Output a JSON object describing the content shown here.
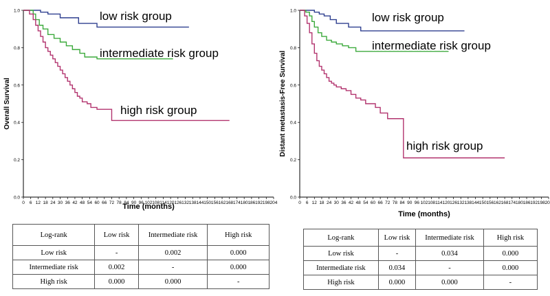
{
  "chart_data": [
    {
      "type": "line",
      "subtype": "kaplan-meier",
      "title": "",
      "xlabel": "Time (months)",
      "ylabel": "Overall Survival",
      "xlim": [
        0,
        204
      ],
      "ylim": [
        0,
        1.0
      ],
      "x_ticks": [
        0,
        6,
        12,
        18,
        24,
        30,
        36,
        42,
        48,
        54,
        60,
        66,
        72,
        78,
        84,
        90,
        96,
        102,
        108,
        114,
        120,
        126,
        132,
        138,
        144,
        150,
        156,
        162,
        168,
        174,
        180,
        186,
        192,
        198,
        204
      ],
      "y_ticks": [
        0.0,
        0.2,
        0.4,
        0.6,
        0.8,
        1.0
      ],
      "y_tick_labels": [
        "0.0",
        "0.2",
        "0.4",
        "0.6",
        "0.8",
        "1.0"
      ],
      "series": [
        {
          "name": "low risk group",
          "color": "#2e3f8f",
          "x": [
            0,
            10,
            14,
            20,
            30,
            45,
            60,
            80,
            100,
            120,
            135
          ],
          "y": [
            1.0,
            1.0,
            0.99,
            0.98,
            0.96,
            0.93,
            0.91,
            0.91,
            0.91,
            0.91,
            0.91
          ]
        },
        {
          "name": "intermediate risk group",
          "color": "#3caa3c",
          "x": [
            0,
            5,
            8,
            10,
            13,
            16,
            20,
            25,
            30,
            35,
            40,
            46,
            50,
            55,
            60,
            80,
            100,
            122
          ],
          "y": [
            1.0,
            1.0,
            0.98,
            0.95,
            0.92,
            0.9,
            0.87,
            0.85,
            0.83,
            0.81,
            0.79,
            0.77,
            0.75,
            0.75,
            0.74,
            0.74,
            0.74,
            0.74
          ]
        },
        {
          "name": "high risk group",
          "color": "#b2336e",
          "x": [
            0,
            5,
            8,
            10,
            12,
            14,
            16,
            18,
            20,
            22,
            24,
            26,
            28,
            30,
            32,
            34,
            36,
            38,
            40,
            42,
            44,
            46,
            48,
            52,
            55,
            60,
            66,
            72,
            80,
            100,
            120,
            150,
            168
          ],
          "y": [
            1.0,
            0.98,
            0.95,
            0.92,
            0.89,
            0.86,
            0.83,
            0.8,
            0.78,
            0.76,
            0.74,
            0.72,
            0.7,
            0.68,
            0.66,
            0.64,
            0.62,
            0.6,
            0.58,
            0.56,
            0.54,
            0.53,
            0.51,
            0.5,
            0.48,
            0.47,
            0.47,
            0.41,
            0.41,
            0.41,
            0.41,
            0.41,
            0.41
          ]
        }
      ]
    },
    {
      "type": "line",
      "subtype": "kaplan-meier",
      "title": "",
      "xlabel": "Time (months)",
      "ylabel": "Distant metastasis-Free  Survival",
      "xlim": [
        0,
        204
      ],
      "ylim": [
        0,
        1.0
      ],
      "x_ticks": [
        0,
        6,
        12,
        18,
        24,
        30,
        36,
        42,
        48,
        54,
        60,
        66,
        72,
        78,
        84,
        90,
        96,
        102,
        108,
        114,
        120,
        126,
        132,
        138,
        144,
        150,
        156,
        162,
        168,
        174,
        180,
        186,
        192,
        198,
        204
      ],
      "y_ticks": [
        0.0,
        0.2,
        0.4,
        0.6,
        0.8,
        1.0
      ],
      "y_tick_labels": [
        "0.0",
        "0.2",
        "0.4",
        "0.6",
        "0.8",
        "1.0"
      ],
      "series": [
        {
          "name": "low risk group",
          "color": "#2e3f8f",
          "x": [
            0,
            8,
            12,
            16,
            20,
            25,
            30,
            40,
            50,
            60,
            80,
            100,
            120,
            135
          ],
          "y": [
            1.0,
            1.0,
            0.99,
            0.98,
            0.97,
            0.95,
            0.93,
            0.91,
            0.89,
            0.89,
            0.89,
            0.89,
            0.89,
            0.89
          ]
        },
        {
          "name": "intermediate risk group",
          "color": "#3caa3c",
          "x": [
            0,
            5,
            8,
            10,
            12,
            15,
            18,
            22,
            26,
            30,
            35,
            40,
            46,
            50,
            60,
            80,
            100,
            122
          ],
          "y": [
            1.0,
            0.99,
            0.97,
            0.94,
            0.91,
            0.88,
            0.86,
            0.84,
            0.83,
            0.82,
            0.81,
            0.8,
            0.78,
            0.78,
            0.78,
            0.78,
            0.78,
            0.78
          ]
        },
        {
          "name": "high risk group",
          "color": "#b2336e",
          "x": [
            0,
            4,
            6,
            8,
            10,
            12,
            14,
            16,
            18,
            20,
            22,
            24,
            26,
            28,
            30,
            34,
            38,
            42,
            46,
            50,
            54,
            58,
            62,
            66,
            72,
            84,
            85,
            100,
            120,
            150,
            168
          ],
          "y": [
            1.0,
            0.97,
            0.93,
            0.88,
            0.82,
            0.77,
            0.73,
            0.7,
            0.68,
            0.66,
            0.64,
            0.62,
            0.61,
            0.6,
            0.59,
            0.58,
            0.57,
            0.55,
            0.53,
            0.52,
            0.5,
            0.5,
            0.48,
            0.45,
            0.42,
            0.42,
            0.21,
            0.21,
            0.21,
            0.21,
            0.21
          ]
        }
      ]
    }
  ],
  "tables": [
    {
      "header": [
        "Log-rank",
        "Low risk",
        "Intermediate risk",
        "High risk"
      ],
      "rows": [
        [
          "Low risk",
          "-",
          "0.002",
          "0.000"
        ],
        [
          "Intermediate risk",
          "0.002",
          "-",
          "0.000"
        ],
        [
          "High risk",
          "0.000",
          "0.000",
          "-"
        ]
      ]
    },
    {
      "header": [
        "Log-rank",
        "Low risk",
        "Intermediate risk",
        "High risk"
      ],
      "rows": [
        [
          "Low risk",
          "-",
          "0.034",
          "0.000"
        ],
        [
          "Intermediate risk",
          "0.034",
          "-",
          "0.000"
        ],
        [
          "High risk",
          "0.000",
          "0.000",
          "-"
        ]
      ]
    }
  ]
}
